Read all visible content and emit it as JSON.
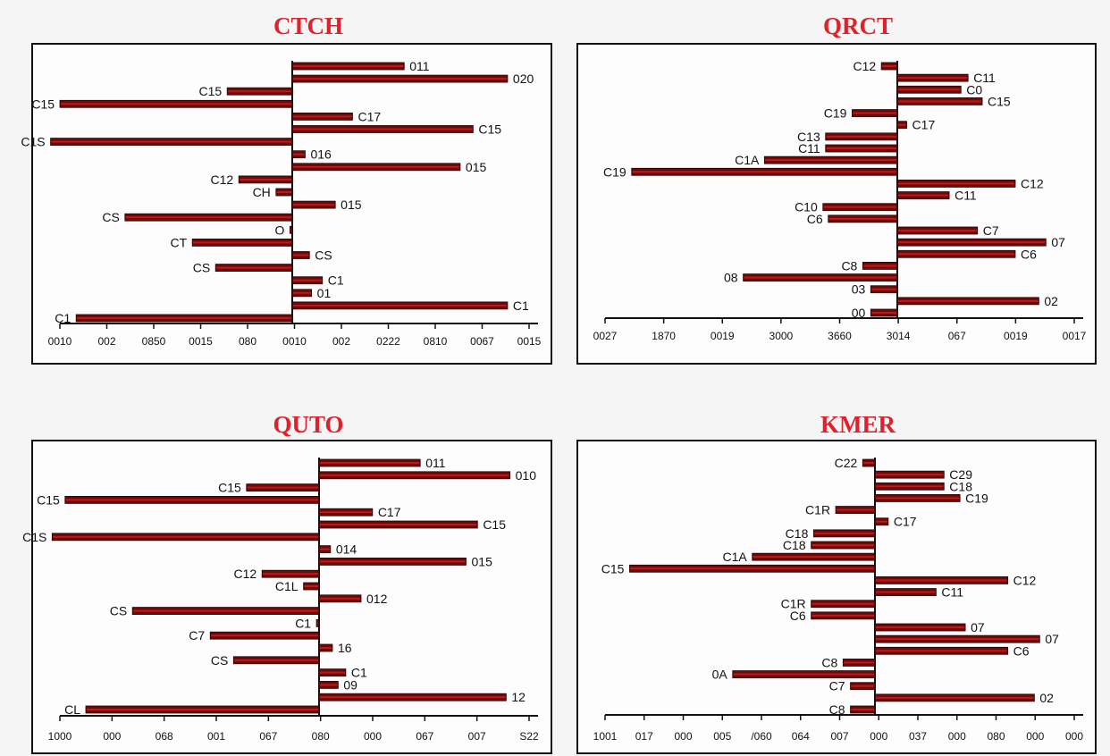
{
  "chart_data": [
    {
      "type": "bar",
      "orientation": "horizontal-diverging",
      "title": "CTCH",
      "xlim": [
        -1,
        1.1
      ],
      "x_tick_labels": [
        "0010",
        "002",
        "0850",
        "0015",
        "080",
        "0010",
        "002",
        "0222",
        "0810",
        "0067",
        "0015"
      ],
      "bars": [
        {
          "label": "011",
          "value": 0.52
        },
        {
          "label": "020",
          "value": 1.0
        },
        {
          "label": "C15",
          "value": -0.28
        },
        {
          "label": "C15",
          "value": -1.0
        },
        {
          "label": "C17",
          "value": 0.28
        },
        {
          "label": "C15",
          "value": 0.84
        },
        {
          "label": "C1S",
          "value": -1.04
        },
        {
          "label": "016",
          "value": 0.06
        },
        {
          "label": "015",
          "value": 0.78
        },
        {
          "label": "C12",
          "value": -0.23
        },
        {
          "label": "CH",
          "value": -0.07
        },
        {
          "label": "015",
          "value": 0.2
        },
        {
          "label": "CS",
          "value": -0.72
        },
        {
          "label": "O",
          "value": -0.01
        },
        {
          "label": "CT",
          "value": -0.43
        },
        {
          "label": "CS",
          "value": 0.08
        },
        {
          "label": "CS",
          "value": -0.33
        },
        {
          "label": "C1",
          "value": 0.14
        },
        {
          "label": "01",
          "value": 0.09
        },
        {
          "label": "C1",
          "value": 1.0
        },
        {
          "label": "C1",
          "value": -0.93
        }
      ]
    },
    {
      "type": "bar",
      "orientation": "horizontal-diverging",
      "title": "QRCT",
      "xlim": [
        -1.1,
        0.75
      ],
      "x_tick_labels": [
        "0027",
        "1870",
        "0019",
        "3000",
        "3660",
        "3014",
        "067",
        "0019",
        "0017"
      ],
      "bars": [
        {
          "label": "C12",
          "value": -0.06
        },
        {
          "label": "C11",
          "value": 0.3
        },
        {
          "label": "C0",
          "value": 0.27
        },
        {
          "label": "C15",
          "value": 0.36
        },
        {
          "label": "C19",
          "value": -0.17
        },
        {
          "label": "C17",
          "value": 0.04
        },
        {
          "label": "C13",
          "value": -0.27
        },
        {
          "label": "C11",
          "value": -0.27
        },
        {
          "label": "C1A",
          "value": -0.5
        },
        {
          "label": "C19",
          "value": -1.0
        },
        {
          "label": "C12",
          "value": 0.5
        },
        {
          "label": "C11",
          "value": 0.22
        },
        {
          "label": "C10",
          "value": -0.28
        },
        {
          "label": "C6",
          "value": -0.26
        },
        {
          "label": "C7",
          "value": 0.34
        },
        {
          "label": "07",
          "value": 0.63
        },
        {
          "label": "C6",
          "value": 0.5
        },
        {
          "label": "C8",
          "value": -0.13
        },
        {
          "label": "08",
          "value": -0.58
        },
        {
          "label": "03",
          "value": -0.1
        },
        {
          "label": "02",
          "value": 0.6
        },
        {
          "label": "00",
          "value": -0.1
        }
      ]
    },
    {
      "type": "bar",
      "orientation": "horizontal-diverging",
      "title": "QUTO",
      "xlim": [
        -1,
        1.1
      ],
      "x_tick_labels": [
        "1000",
        "000",
        "068",
        "001",
        "067",
        "080",
        "000",
        "067",
        "007",
        "S22"
      ],
      "bars": [
        {
          "label": "011",
          "value": 0.53
        },
        {
          "label": "010",
          "value": 1.0
        },
        {
          "label": "C15",
          "value": -0.28
        },
        {
          "label": "C15",
          "value": -0.98
        },
        {
          "label": "C17",
          "value": 0.28
        },
        {
          "label": "C15",
          "value": 0.83
        },
        {
          "label": "C1S",
          "value": -1.03
        },
        {
          "label": "014",
          "value": 0.06
        },
        {
          "label": "015",
          "value": 0.77
        },
        {
          "label": "C12",
          "value": -0.22
        },
        {
          "label": "C1L",
          "value": -0.06
        },
        {
          "label": "012",
          "value": 0.22
        },
        {
          "label": "CS",
          "value": -0.72
        },
        {
          "label": "C1",
          "value": -0.01
        },
        {
          "label": "C7",
          "value": -0.42
        },
        {
          "label": "16",
          "value": 0.07
        },
        {
          "label": "CS",
          "value": -0.33
        },
        {
          "label": "C1",
          "value": 0.14
        },
        {
          "label": "09",
          "value": 0.1
        },
        {
          "label": "12",
          "value": 0.98
        },
        {
          "label": "CL",
          "value": -0.9
        }
      ]
    },
    {
      "type": "bar",
      "orientation": "horizontal-diverging",
      "title": "KMER",
      "xlim": [
        -1.1,
        0.75
      ],
      "x_tick_labels": [
        "1001",
        "017",
        "000",
        "005",
        "/060",
        "064",
        "007",
        "000",
        "037",
        "000",
        "080",
        "000",
        "000"
      ],
      "bars": [
        {
          "label": "C22",
          "value": -0.05
        },
        {
          "label": "C29",
          "value": 0.26
        },
        {
          "label": "C18",
          "value": 0.26
        },
        {
          "label": "C19",
          "value": 0.32
        },
        {
          "label": "C1R",
          "value": -0.16
        },
        {
          "label": "C17",
          "value": 0.05
        },
        {
          "label": "C18",
          "value": -0.25
        },
        {
          "label": "C18",
          "value": -0.26
        },
        {
          "label": "C1A",
          "value": -0.5
        },
        {
          "label": "C15",
          "value": -1.0
        },
        {
          "label": "C12",
          "value": 0.5
        },
        {
          "label": "C11",
          "value": 0.23
        },
        {
          "label": "C1R",
          "value": -0.26
        },
        {
          "label": "C6",
          "value": -0.26
        },
        {
          "label": "07",
          "value": 0.34
        },
        {
          "label": "07",
          "value": 0.62
        },
        {
          "label": "C6",
          "value": 0.5
        },
        {
          "label": "C8",
          "value": -0.13
        },
        {
          "label": "0A",
          "value": -0.58
        },
        {
          "label": "C7",
          "value": -0.1
        },
        {
          "label": "02",
          "value": 0.6
        },
        {
          "label": "C8",
          "value": -0.1
        }
      ]
    }
  ],
  "colors": {
    "title": "#e0202a",
    "bar": "#6b0a0a",
    "bar_highlight": "#c01818",
    "axis": "#111111"
  }
}
